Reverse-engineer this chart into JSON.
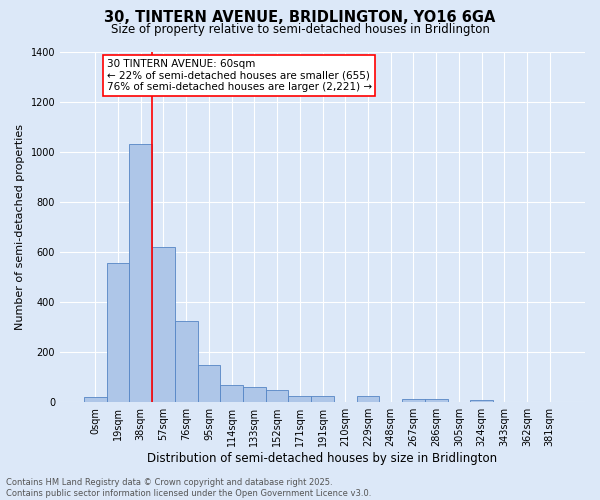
{
  "title": "30, TINTERN AVENUE, BRIDLINGTON, YO16 6GA",
  "subtitle": "Size of property relative to semi-detached houses in Bridlington",
  "xlabel": "Distribution of semi-detached houses by size in Bridlington",
  "ylabel": "Number of semi-detached properties",
  "bar_labels": [
    "0sqm",
    "19sqm",
    "38sqm",
    "57sqm",
    "76sqm",
    "95sqm",
    "114sqm",
    "133sqm",
    "152sqm",
    "171sqm",
    "191sqm",
    "210sqm",
    "229sqm",
    "248sqm",
    "267sqm",
    "286sqm",
    "305sqm",
    "324sqm",
    "343sqm",
    "362sqm",
    "381sqm"
  ],
  "bar_values": [
    20,
    555,
    1030,
    620,
    325,
    148,
    70,
    60,
    50,
    25,
    25,
    0,
    25,
    0,
    12,
    12,
    0,
    10,
    0,
    0,
    0
  ],
  "bar_color": "#aec6e8",
  "bar_edge_color": "#5585c5",
  "background_color": "#dce8f8",
  "grid_color": "#ffffff",
  "vline_color": "red",
  "vline_position": 2.5,
  "annotation_title": "30 TINTERN AVENUE: 60sqm",
  "annotation_line1": "← 22% of semi-detached houses are smaller (655)",
  "annotation_line2": "76% of semi-detached houses are larger (2,221) →",
  "annotation_box_color": "white",
  "annotation_box_edge": "red",
  "ylim": [
    0,
    1400
  ],
  "yticks": [
    0,
    200,
    400,
    600,
    800,
    1000,
    1200,
    1400
  ],
  "footer_line1": "Contains HM Land Registry data © Crown copyright and database right 2025.",
  "footer_line2": "Contains public sector information licensed under the Open Government Licence v3.0.",
  "title_fontsize": 10.5,
  "subtitle_fontsize": 8.5,
  "ylabel_fontsize": 8,
  "xlabel_fontsize": 8.5,
  "tick_fontsize": 7,
  "footer_fontsize": 6,
  "annotation_fontsize": 7.5
}
